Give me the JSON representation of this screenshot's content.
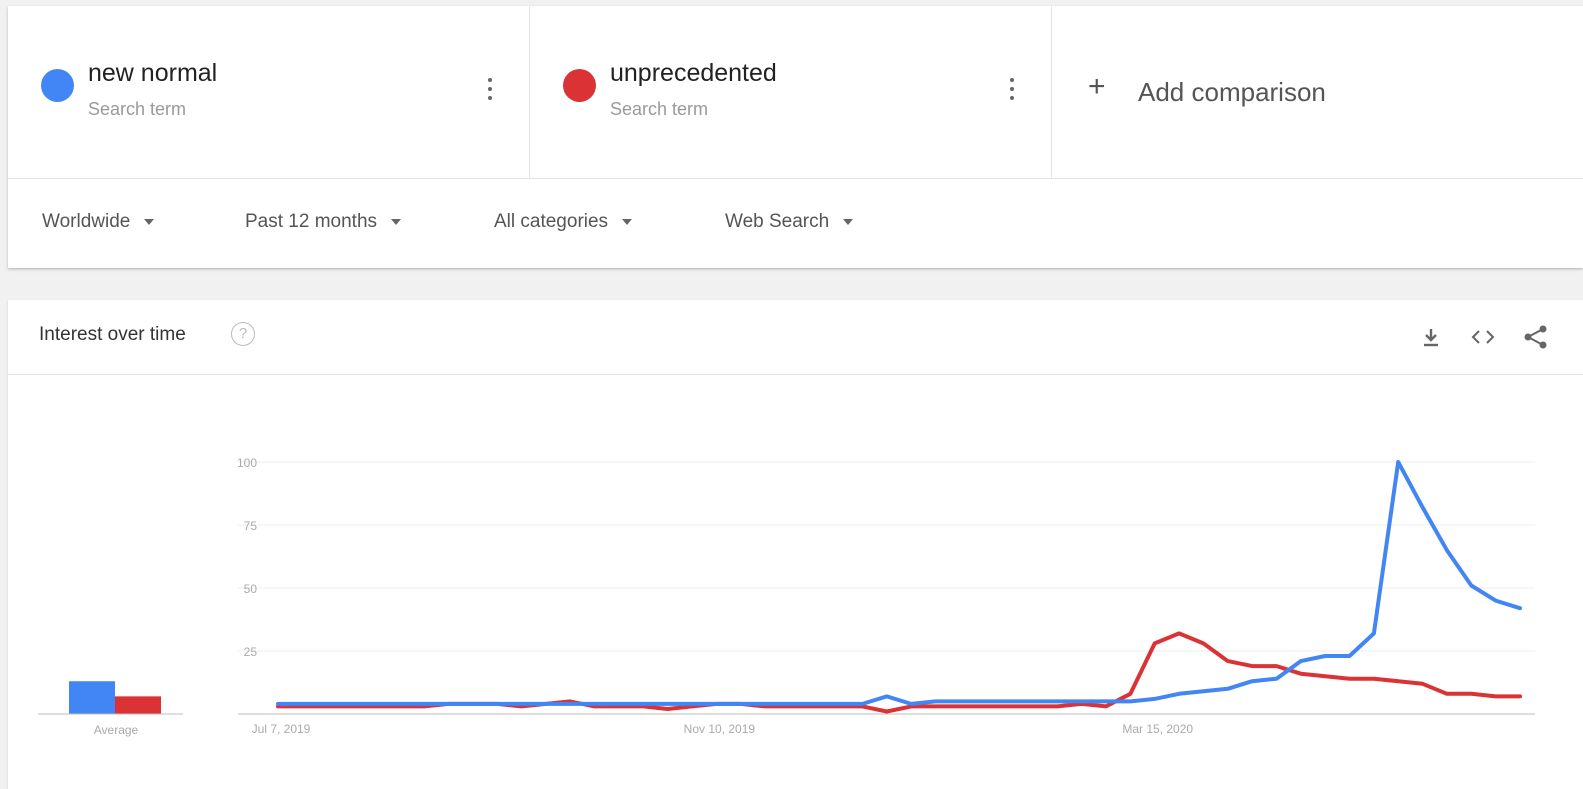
{
  "terms": [
    {
      "name": "new normal",
      "subtitle": "Search term",
      "color": "#4285f4"
    },
    {
      "name": "unprecedented",
      "subtitle": "Search term",
      "color": "#db3236"
    }
  ],
  "add_comparison": {
    "icon": "+",
    "label": "Add comparison"
  },
  "filters": {
    "region": "Worldwide",
    "time": "Past 12 months",
    "category": "All categories",
    "search_type": "Web Search"
  },
  "interest_panel": {
    "title": "Interest over time",
    "help_glyph": "?",
    "icons": [
      "download-icon",
      "embed-icon",
      "share-icon"
    ]
  },
  "chart_data": {
    "type": "line",
    "x_tick_labels": [
      "Jul 7, 2019",
      "Nov 10, 2019",
      "Mar 15, 2020"
    ],
    "x_tick_indices": [
      0,
      18,
      36
    ],
    "y_ticks": [
      100,
      75,
      50,
      25
    ],
    "ylim": [
      0,
      100
    ],
    "grid": true,
    "average_label": "Average",
    "average": [
      {
        "name": "new normal",
        "value": 13
      },
      {
        "name": "unprecedented",
        "value": 7
      }
    ],
    "series": [
      {
        "name": "new normal",
        "color": "#4285f4",
        "values": [
          4,
          4,
          4,
          4,
          4,
          4,
          4,
          4,
          4,
          4,
          4,
          4,
          4,
          4,
          4,
          4,
          4,
          4,
          4,
          4,
          4,
          4,
          4,
          4,
          4,
          7,
          4,
          5,
          5,
          5,
          5,
          5,
          5,
          5,
          5,
          5,
          6,
          8,
          9,
          10,
          13,
          14,
          21,
          23,
          23,
          32,
          100,
          82,
          65,
          51,
          45,
          42
        ]
      },
      {
        "name": "unprecedented",
        "color": "#db3236",
        "values": [
          3,
          3,
          3,
          3,
          3,
          3,
          3,
          4,
          4,
          4,
          3,
          4,
          5,
          3,
          3,
          3,
          2,
          3,
          4,
          4,
          3,
          3,
          3,
          3,
          3,
          1,
          3,
          3,
          3,
          3,
          3,
          3,
          3,
          4,
          3,
          8,
          28,
          32,
          28,
          21,
          19,
          19,
          16,
          15,
          14,
          14,
          13,
          12,
          8,
          8,
          7,
          7
        ]
      }
    ]
  }
}
